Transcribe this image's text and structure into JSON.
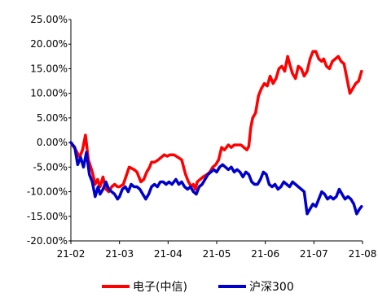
{
  "chart_data": {
    "type": "line",
    "title": "",
    "xlabel": "",
    "ylabel": "",
    "x_ticks": [
      "21-02",
      "21-03",
      "21-04",
      "21-05",
      "21-06",
      "21-07",
      "21-08"
    ],
    "y_ticks": [
      "25.00%",
      "20.00%",
      "15.00%",
      "10.00%",
      "5.00%",
      "0.00%",
      "-5.00%",
      "-10.00%",
      "-15.00%",
      "-20.00%"
    ],
    "ylim": [
      -20,
      25
    ],
    "unit": "%",
    "grid": false,
    "legend_position": "bottom",
    "series": [
      {
        "name": "电子(中信)",
        "color": "#ff0000",
        "x": [
          0,
          0.1,
          0.18,
          0.24,
          0.3,
          0.36,
          0.44,
          0.5,
          0.55,
          0.6,
          0.66,
          0.72,
          0.78,
          0.84,
          0.9,
          0.96,
          1.0,
          1.08,
          1.2,
          1.3,
          1.36,
          1.44,
          1.5,
          1.56,
          1.62,
          1.66,
          1.72,
          1.8,
          1.86,
          1.92,
          1.98,
          2.04,
          2.12,
          2.2,
          2.28,
          2.36,
          2.42,
          2.48,
          2.52,
          2.56,
          2.6,
          2.66,
          2.72,
          2.8,
          2.86,
          2.92,
          2.98,
          3.04,
          3.1,
          3.16,
          3.24,
          3.3,
          3.36,
          3.44,
          3.5,
          3.56,
          3.62,
          3.66,
          3.7,
          3.74,
          3.8,
          3.86,
          3.92,
          3.98,
          4.04,
          4.1,
          4.16,
          4.22,
          4.28,
          4.34,
          4.4,
          4.46,
          4.5,
          4.56,
          4.62,
          4.68,
          4.74,
          4.8,
          4.86,
          4.92,
          4.98,
          5.04,
          5.1,
          5.16,
          5.2,
          5.26,
          5.32,
          5.38,
          5.44,
          5.5,
          5.56,
          5.62,
          5.68,
          5.74,
          5.8,
          5.86,
          5.92,
          5.98
        ],
        "y": [
          0.0,
          -1.5,
          -3.0,
          -1.5,
          1.5,
          -3.5,
          -6.0,
          -8.5,
          -7.5,
          -9.0,
          -7.0,
          -9.5,
          -10.0,
          -9.0,
          -8.5,
          -9.0,
          -9.0,
          -8.5,
          -5.0,
          -5.5,
          -6.0,
          -8.0,
          -7.5,
          -6.0,
          -5.0,
          -4.0,
          -4.0,
          -3.5,
          -3.0,
          -2.5,
          -2.8,
          -2.5,
          -2.5,
          -3.0,
          -3.5,
          -6.5,
          -8.0,
          -9.0,
          -8.5,
          -9.5,
          -8.0,
          -7.5,
          -7.0,
          -6.5,
          -6.0,
          -5.0,
          -4.5,
          -3.5,
          -1.0,
          -1.5,
          -0.5,
          -1.0,
          -0.5,
          -0.5,
          -0.5,
          -1.0,
          -1.5,
          -0.8,
          3.0,
          5.0,
          6.0,
          9.5,
          11.0,
          12.0,
          11.5,
          13.5,
          12.0,
          13.0,
          15.0,
          15.5,
          14.5,
          17.5,
          16.0,
          14.0,
          13.0,
          15.5,
          15.0,
          13.5,
          14.5,
          17.0,
          18.5,
          18.5,
          17.0,
          16.5,
          17.0,
          15.5,
          15.0,
          16.5,
          17.0,
          17.5,
          16.5,
          16.0,
          13.0,
          10.0,
          11.0,
          12.0,
          12.5,
          14.5
        ]
      },
      {
        "name": "沪深300",
        "color": "#0000cc",
        "x": [
          0,
          0.08,
          0.14,
          0.2,
          0.26,
          0.32,
          0.38,
          0.44,
          0.5,
          0.56,
          0.6,
          0.66,
          0.72,
          0.78,
          0.84,
          0.9,
          0.96,
          1.0,
          1.06,
          1.12,
          1.18,
          1.24,
          1.3,
          1.36,
          1.42,
          1.48,
          1.54,
          1.6,
          1.66,
          1.72,
          1.78,
          1.84,
          1.9,
          1.96,
          2.02,
          2.08,
          2.16,
          2.22,
          2.28,
          2.34,
          2.4,
          2.46,
          2.52,
          2.58,
          2.64,
          2.7,
          2.76,
          2.82,
          2.88,
          2.94,
          3.0,
          3.06,
          3.12,
          3.18,
          3.24,
          3.3,
          3.36,
          3.42,
          3.48,
          3.54,
          3.6,
          3.66,
          3.72,
          3.78,
          3.84,
          3.9,
          3.96,
          4.02,
          4.08,
          4.14,
          4.2,
          4.26,
          4.32,
          4.38,
          4.44,
          4.5,
          4.56,
          4.62,
          4.68,
          4.74,
          4.8,
          4.86,
          4.92,
          4.98,
          5.04,
          5.1,
          5.16,
          5.22,
          5.28,
          5.34,
          5.4,
          5.46,
          5.52,
          5.58,
          5.64,
          5.7,
          5.76,
          5.82,
          5.88,
          5.94,
          5.98
        ],
        "y": [
          0.0,
          -1.0,
          -4.5,
          -3.0,
          -5.0,
          -2.0,
          -6.5,
          -8.0,
          -11.0,
          -9.0,
          -10.5,
          -9.5,
          -8.0,
          -9.5,
          -10.0,
          -10.5,
          -11.5,
          -11.0,
          -9.5,
          -9.0,
          -10.0,
          -8.5,
          -9.0,
          -9.0,
          -9.5,
          -10.5,
          -11.5,
          -10.5,
          -9.0,
          -8.5,
          -9.0,
          -8.0,
          -8.0,
          -8.5,
          -8.0,
          -8.5,
          -7.5,
          -8.5,
          -8.0,
          -9.0,
          -9.5,
          -9.0,
          -10.0,
          -10.5,
          -9.0,
          -8.5,
          -7.5,
          -6.5,
          -6.0,
          -5.5,
          -6.0,
          -5.0,
          -4.5,
          -5.0,
          -5.5,
          -5.0,
          -6.0,
          -5.5,
          -6.0,
          -7.0,
          -6.0,
          -6.5,
          -8.0,
          -8.5,
          -8.5,
          -7.5,
          -6.0,
          -6.5,
          -8.5,
          -9.0,
          -8.5,
          -9.5,
          -9.0,
          -8.0,
          -8.5,
          -9.0,
          -8.0,
          -8.5,
          -9.0,
          -9.5,
          -10.0,
          -14.5,
          -13.5,
          -12.5,
          -13.0,
          -11.5,
          -10.0,
          -10.5,
          -11.5,
          -11.0,
          -11.5,
          -11.0,
          -9.5,
          -10.5,
          -11.5,
          -11.0,
          -11.5,
          -12.5,
          -14.5,
          -13.5,
          -13.0
        ]
      }
    ]
  }
}
